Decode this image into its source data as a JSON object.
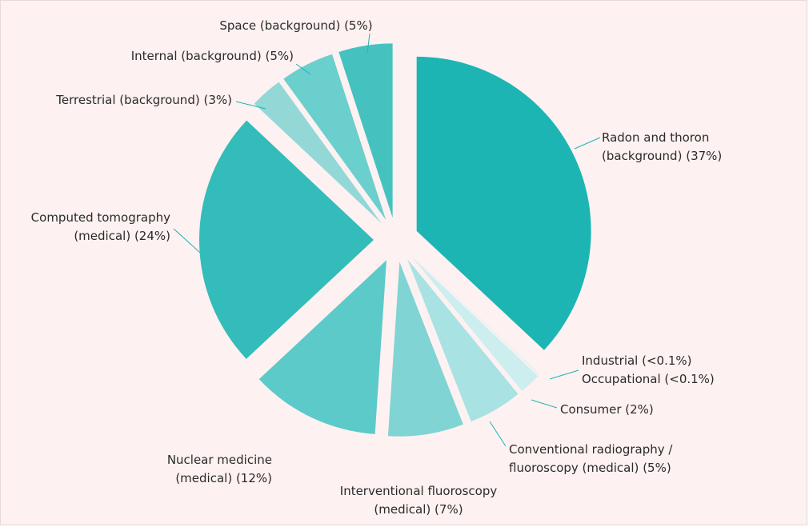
{
  "chart_data": {
    "type": "pie",
    "categories": [
      [
        "Radon and thoron",
        "(background)"
      ],
      [
        "Industrial"
      ],
      [
        "Occupational"
      ],
      [
        "Consumer"
      ],
      [
        "Conventional radiography /",
        "fluoroscopy (medical)"
      ],
      [
        "Interventional fluoroscopy",
        "(medical)"
      ],
      [
        "Nuclear medicine",
        "(medical)"
      ],
      [
        "Computed tomography",
        "(medical)"
      ],
      [
        "Terrestrial (background)"
      ],
      [
        "Internal (background)"
      ],
      [
        "Space (background)"
      ]
    ],
    "values": [
      37,
      0.05,
      0.05,
      2,
      5,
      7,
      12,
      24,
      3,
      5,
      5
    ],
    "value_labels": [
      "(37%)",
      "(<0.1%)",
      "(<0.1%)",
      "(2%)",
      "(5%)",
      "(7%)",
      "(12%)",
      "(24%)",
      "(3%)",
      "(5%)",
      "(5%)"
    ],
    "colors": [
      "#1db5b3",
      "#d8f2f2",
      "#d8f2f2",
      "#cdeeee",
      "#a8e2e2",
      "#80d4d3",
      "#5ccac8",
      "#33bcba",
      "#93d8d7",
      "#6acfcd",
      "#45c2c0"
    ]
  }
}
